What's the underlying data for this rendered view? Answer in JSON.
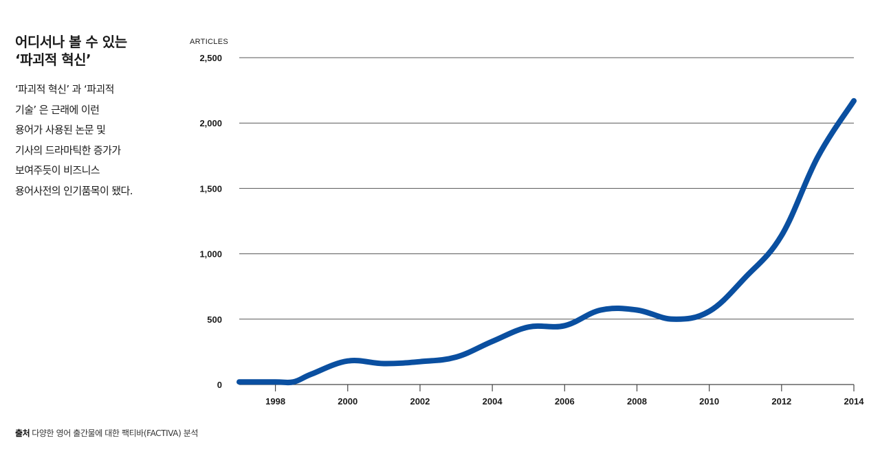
{
  "header": {
    "title_line1": "어디서나 볼 수 있는",
    "title_line2": "‘파괴적 혁신’"
  },
  "description": [
    "‘파괴적 혁신’ 과 ‘파괴적",
    "기술’ 은 근래에 이런",
    "용어가 사용된 논문 및",
    "기사의 드라마틱한 증가가",
    "보여주듯이 비즈니스",
    "용어사전의 인기품목이 됐다."
  ],
  "source": {
    "label": "출처",
    "text": "다양한 영어 출간물에 대한 팩티바(FACTIVA) 분석"
  },
  "chart_data": {
    "type": "line",
    "ylabel": "ARTICLES",
    "xlabel": "",
    "xlim": [
      1997,
      2014
    ],
    "ylim": [
      0,
      2500
    ],
    "yticks": [
      0,
      500,
      1000,
      1500,
      2000,
      2500
    ],
    "yticklabels": [
      "0",
      "500",
      "1,000",
      "1,500",
      "2,000",
      "2,500"
    ],
    "xticks": [
      1998,
      2000,
      2002,
      2004,
      2006,
      2008,
      2010,
      2012,
      2014
    ],
    "xticklabels": [
      "1998",
      "2000",
      "2002",
      "2004",
      "2006",
      "2008",
      "2010",
      "2012",
      "2014"
    ],
    "grid": true,
    "line_color": "#0a4fa0",
    "grid_color": "#555555",
    "series": [
      {
        "x": [
          1997,
          1998,
          1998.5,
          1999,
          2000,
          2001,
          2002,
          2003,
          2004,
          2005,
          2006,
          2007,
          2008,
          2009,
          2010,
          2011,
          2012,
          2013,
          2014
        ],
        "y": [
          20,
          20,
          20,
          80,
          180,
          160,
          175,
          210,
          330,
          440,
          450,
          570,
          570,
          500,
          560,
          820,
          1140,
          1740,
          2170
        ]
      }
    ]
  }
}
